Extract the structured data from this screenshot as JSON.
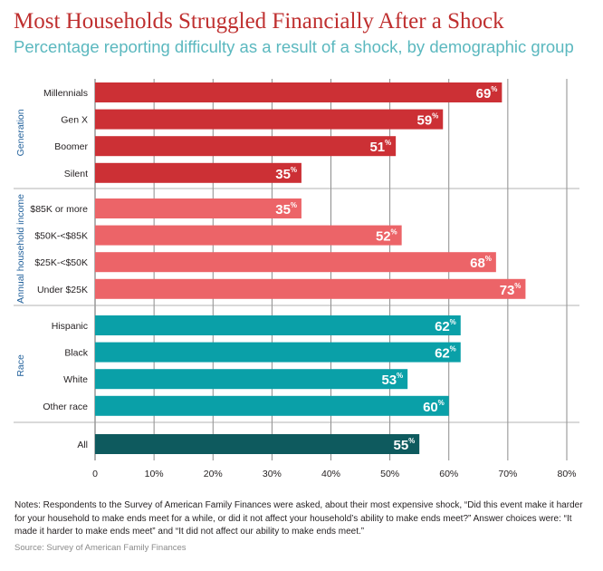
{
  "title": "Most Households Struggled Financially After a Shock",
  "subtitle": "Percentage reporting difficulty as a result of a shock, by demographic group",
  "notes": "Notes: Respondents to the Survey of American Family Finances were asked, about their most expensive shock, “Did this event make it harder for your household to make ends meet for a while, or did it not affect your household’s ability to make ends meet?” Answer choices were: “It made it harder to make ends meet” and “It did not affect our ability to make ends meet.”",
  "source": "Source: Survey of American Family Finances",
  "colors": {
    "Generation": "#cc3035",
    "Annual household income": "#ec6468",
    "Race": "#0aa0a8",
    "All": "#0e5a5e",
    "grid": "#7f7f7f"
  },
  "chart_data": {
    "type": "bar",
    "orientation": "horizontal",
    "title": "Most Households Struggled Financially After a Shock",
    "subtitle": "Percentage reporting difficulty as a result of a shock, by demographic group",
    "xlim": [
      0,
      80
    ],
    "xticks": [
      "0",
      "10%",
      "20%",
      "30%",
      "40%",
      "50%",
      "60%",
      "70%",
      "80%"
    ],
    "grid": true,
    "value_suffix": "%",
    "groups": [
      {
        "name": "Generation",
        "categories": [
          "Millennials",
          "Gen X",
          "Boomer",
          "Silent"
        ],
        "values": [
          69,
          59,
          51,
          35
        ]
      },
      {
        "name": "Annual household income",
        "categories": [
          "$85K or more",
          "$50K-<$85K",
          "$25K-<$50K",
          "Under $25K"
        ],
        "values": [
          35,
          52,
          68,
          73
        ]
      },
      {
        "name": "Race",
        "categories": [
          "Hispanic",
          "Black",
          "White",
          "Other race"
        ],
        "values": [
          62,
          62,
          53,
          60
        ]
      },
      {
        "name": "",
        "key": "All",
        "categories": [
          "All"
        ],
        "values": [
          55
        ]
      }
    ]
  }
}
